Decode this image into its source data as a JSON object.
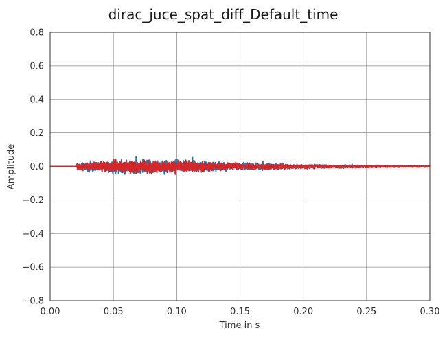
{
  "chart_data": {
    "type": "line",
    "title": "dirac_juce_spat_diff_Default_time",
    "xlabel": "Time in s",
    "ylabel": "Amplitude",
    "xlim": [
      0.0,
      0.3
    ],
    "ylim": [
      -0.8,
      0.8
    ],
    "x_ticks": [
      0.0,
      0.05,
      0.1,
      0.15,
      0.2,
      0.25,
      0.3
    ],
    "x_tick_labels": [
      "0.00",
      "0.05",
      "0.10",
      "0.15",
      "0.20",
      "0.25",
      "0.30"
    ],
    "y_ticks": [
      -0.8,
      -0.6,
      -0.4,
      -0.2,
      0.0,
      0.2,
      0.4,
      0.6,
      0.8
    ],
    "y_tick_labels": [
      "−0.8",
      "−0.6",
      "−0.4",
      "−0.2",
      "0.0",
      "0.2",
      "0.4",
      "0.6",
      "0.8"
    ],
    "grid": true,
    "series": [
      {
        "color": "#1f77b4",
        "onset_s": 0.021,
        "peak_amplitude": 0.057,
        "envelope": [
          [
            0.021,
            0.025
          ],
          [
            0.05,
            0.055
          ],
          [
            0.1,
            0.05
          ],
          [
            0.15,
            0.03
          ],
          [
            0.2,
            0.016
          ],
          [
            0.25,
            0.009
          ],
          [
            0.3,
            0.006
          ]
        ]
      },
      {
        "color": "#d62728",
        "onset_s": 0.021,
        "peak_amplitude": 0.05,
        "envelope": [
          [
            0.021,
            0.022
          ],
          [
            0.05,
            0.048
          ],
          [
            0.1,
            0.045
          ],
          [
            0.15,
            0.027
          ],
          [
            0.2,
            0.014
          ],
          [
            0.25,
            0.008
          ],
          [
            0.3,
            0.005
          ]
        ]
      }
    ]
  }
}
